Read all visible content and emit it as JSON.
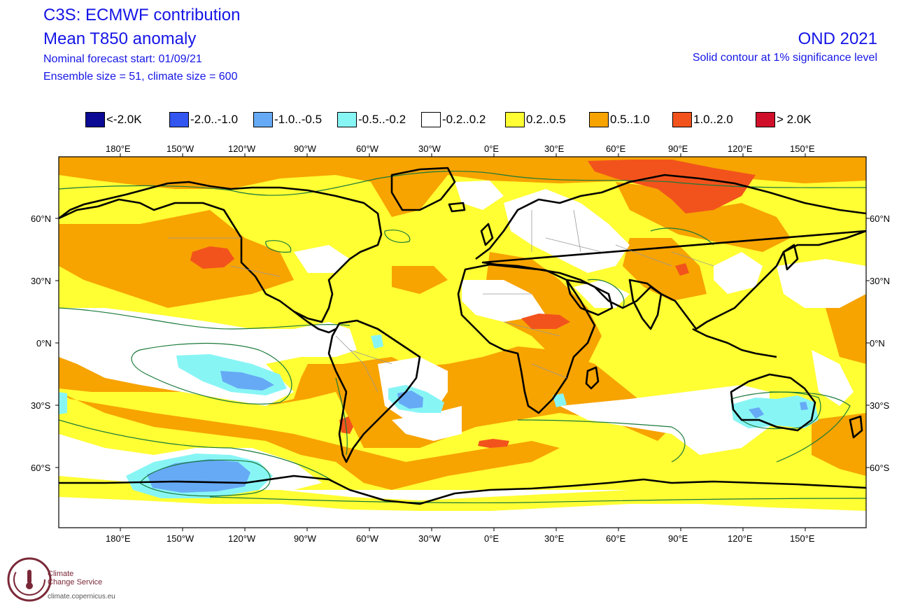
{
  "header": {
    "title": "C3S: ECMWF contribution",
    "subtitle": "Mean T850 anomaly",
    "forecast_start": "Nominal forecast start: 01/09/21",
    "ensemble": "Ensemble size = 51, climate size = 600",
    "season": "OND 2021",
    "significance": "Solid contour at 1% significance level"
  },
  "legend": [
    {
      "label": "<-2.0K",
      "color": "#0a0a94"
    },
    {
      "label": "-2.0..-1.0",
      "color": "#3355f0"
    },
    {
      "label": "-1.0..-0.5",
      "color": "#66aaf5"
    },
    {
      "label": "-0.5..-0.2",
      "color": "#88f5f5"
    },
    {
      "label": "-0.2..0.2",
      "color": "#ffffff"
    },
    {
      "label": "0.2..0.5",
      "color": "#ffff33"
    },
    {
      "label": "0.5..1.0",
      "color": "#f7a300"
    },
    {
      "label": "1.0..2.0",
      "color": "#f2531c"
    },
    {
      "label": "> 2.0K",
      "color": "#d0102a"
    }
  ],
  "axes": {
    "lon_labels": [
      "180°E",
      "150°W",
      "120°W",
      "90°W",
      "60°W",
      "30°W",
      "0°E",
      "30°E",
      "60°E",
      "90°E",
      "120°E",
      "150°E"
    ],
    "lat_labels": [
      "60°N",
      "30°N",
      "0°N",
      "30°S",
      "60°S"
    ]
  },
  "logo": {
    "line1": "Climate",
    "line2": "Change Service",
    "url": "climate.copernicus.eu"
  }
}
